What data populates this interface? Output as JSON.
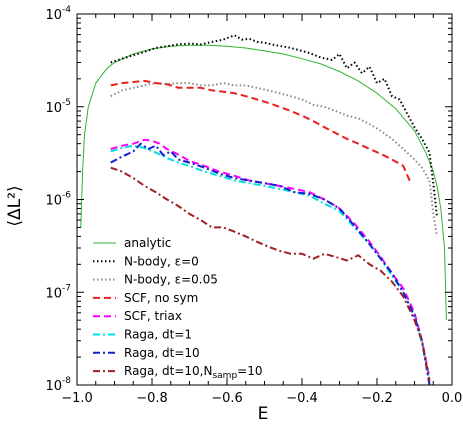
{
  "chart_data": {
    "type": "line",
    "title": "",
    "xlabel": "E",
    "ylabel": "⟨ΔL²⟩",
    "x_scale": "linear",
    "y_scale": "log",
    "xlim": [
      -1.0,
      0.0
    ],
    "ylim": [
      1e-08,
      0.0001
    ],
    "x_ticks": [
      -1.0,
      -0.8,
      -0.6,
      -0.4,
      -0.2,
      0.0
    ],
    "x_tick_labels": [
      "−1.0",
      "−0.8",
      "−0.6",
      "−0.4",
      "−0.2",
      "0.0"
    ],
    "y_ticks": [
      {
        "value": 1e-08,
        "base": "10",
        "exp": "-8"
      },
      {
        "value": 1e-07,
        "base": "10",
        "exp": "-7"
      },
      {
        "value": 1e-06,
        "base": "10",
        "exp": "-6"
      },
      {
        "value": 1e-05,
        "base": "10",
        "exp": "-5"
      },
      {
        "value": 0.0001,
        "base": "10",
        "exp": "-4"
      }
    ],
    "grid": false,
    "legend_position": "lower-left",
    "series": [
      {
        "name": "analytic",
        "color": "#2fb52f",
        "dash": "solid",
        "x": [
          -0.99,
          -0.985,
          -0.98,
          -0.97,
          -0.95,
          -0.92,
          -0.9,
          -0.85,
          -0.8,
          -0.75,
          -0.7,
          -0.65,
          -0.6,
          -0.55,
          -0.5,
          -0.45,
          -0.4,
          -0.35,
          -0.3,
          -0.25,
          -0.2,
          -0.15,
          -0.1,
          -0.07,
          -0.05,
          -0.04,
          -0.03,
          -0.02,
          -0.015
        ],
        "y": [
          5e-07,
          2e-06,
          5e-06,
          1e-05,
          1.8e-05,
          2.6e-05,
          3e-05,
          3.7e-05,
          4.2e-05,
          4.5e-05,
          4.6e-05,
          4.6e-05,
          4.5e-05,
          4.3e-05,
          4e-05,
          3.7e-05,
          3.3e-05,
          2.9e-05,
          2.4e-05,
          1.9e-05,
          1.4e-05,
          9.5e-06,
          5.5e-06,
          3.2e-06,
          2e-06,
          1.4e-06,
          8e-07,
          3e-07,
          5e-08
        ]
      },
      {
        "name": "N-body, ε=0",
        "color": "#000000",
        "dash": "dotted",
        "x": [
          -0.91,
          -0.88,
          -0.85,
          -0.82,
          -0.79,
          -0.76,
          -0.73,
          -0.7,
          -0.67,
          -0.64,
          -0.61,
          -0.58,
          -0.56,
          -0.54,
          -0.52,
          -0.5,
          -0.47,
          -0.44,
          -0.41,
          -0.38,
          -0.35,
          -0.32,
          -0.3,
          -0.28,
          -0.26,
          -0.24,
          -0.22,
          -0.2,
          -0.18,
          -0.16,
          -0.14,
          -0.12,
          -0.1,
          -0.08,
          -0.06,
          -0.05,
          -0.04
        ],
        "y": [
          3e-05,
          3.3e-05,
          3.6e-05,
          3.9e-05,
          4.3e-05,
          4.5e-05,
          4.7e-05,
          4.8e-05,
          4.7e-05,
          5e-05,
          5.3e-05,
          5.9e-05,
          5.3e-05,
          5.4e-05,
          5e-05,
          4.9e-05,
          4.6e-05,
          4.4e-05,
          4.1e-05,
          3.8e-05,
          3.4e-05,
          3.2e-05,
          3.7e-05,
          2.6e-05,
          3e-05,
          2.3e-05,
          2.7e-05,
          1.8e-05,
          2e-05,
          1.3e-05,
          1.2e-05,
          8.5e-06,
          6e-06,
          4.5e-06,
          3.2e-06,
          1.5e-06,
          6.5e-07
        ]
      },
      {
        "name": "N-body, ε=0.05",
        "color": "#888888",
        "dash": "dotted",
        "x": [
          -0.91,
          -0.88,
          -0.85,
          -0.82,
          -0.79,
          -0.76,
          -0.73,
          -0.7,
          -0.67,
          -0.64,
          -0.61,
          -0.58,
          -0.55,
          -0.52,
          -0.49,
          -0.46,
          -0.43,
          -0.4,
          -0.37,
          -0.34,
          -0.31,
          -0.28,
          -0.25,
          -0.22,
          -0.19,
          -0.16,
          -0.13,
          -0.1,
          -0.08,
          -0.06,
          -0.05,
          -0.04
        ],
        "y": [
          1.3e-05,
          1.5e-05,
          1.6e-05,
          1.7e-05,
          1.8e-05,
          1.75e-05,
          1.8e-05,
          1.8e-05,
          1.7e-05,
          1.7e-05,
          1.8e-05,
          1.7e-05,
          1.7e-05,
          1.6e-05,
          1.5e-05,
          1.4e-05,
          1.3e-05,
          1.2e-05,
          1.05e-05,
          1e-05,
          9e-06,
          8e-06,
          7.5e-06,
          6.5e-06,
          5.5e-06,
          4.5e-06,
          3.5e-06,
          2.7e-06,
          2.2e-06,
          1.6e-06,
          7e-07,
          4e-07
        ]
      },
      {
        "name": "SCF, no sym",
        "color": "#e82020",
        "dash": "dashed",
        "x": [
          -0.91,
          -0.88,
          -0.85,
          -0.82,
          -0.79,
          -0.76,
          -0.73,
          -0.7,
          -0.67,
          -0.64,
          -0.61,
          -0.58,
          -0.55,
          -0.52,
          -0.49,
          -0.46,
          -0.43,
          -0.4,
          -0.37,
          -0.34,
          -0.31,
          -0.28,
          -0.25,
          -0.22,
          -0.19,
          -0.16,
          -0.13,
          -0.11
        ],
        "y": [
          1.7e-05,
          1.8e-05,
          1.85e-05,
          1.9e-05,
          1.8e-05,
          1.75e-05,
          1.6e-05,
          1.6e-05,
          1.6e-05,
          1.5e-05,
          1.45e-05,
          1.4e-05,
          1.3e-05,
          1.2e-05,
          1.1e-05,
          1e-05,
          9e-06,
          8e-06,
          7e-06,
          6e-06,
          5.2e-06,
          4.5e-06,
          4e-06,
          3.5e-06,
          3.1e-06,
          2.7e-06,
          2.3e-06,
          1.5e-06
        ]
      },
      {
        "name": "SCF, triax",
        "color": "#ff00ff",
        "dash": "dashed",
        "x": [
          -0.91,
          -0.88,
          -0.85,
          -0.82,
          -0.8,
          -0.78,
          -0.76,
          -0.74,
          -0.72,
          -0.7,
          -0.66,
          -0.62,
          -0.58,
          -0.54,
          -0.5,
          -0.46,
          -0.42,
          -0.38,
          -0.34,
          -0.3,
          -0.26,
          -0.22,
          -0.19,
          -0.16,
          -0.13,
          -0.1,
          -0.08,
          -0.06
        ],
        "y": [
          3.5e-06,
          3.8e-06,
          4e-06,
          4.4e-06,
          4.3e-06,
          4e-06,
          3.5e-06,
          3.2e-06,
          2.9e-06,
          2.6e-06,
          2.3e-06,
          2e-06,
          1.8e-06,
          1.6e-06,
          1.5e-06,
          1.4e-06,
          1.3e-06,
          1.2e-06,
          1e-06,
          8e-07,
          5.5e-07,
          3.5e-07,
          2.4e-07,
          1.6e-07,
          1.1e-07,
          6e-08,
          3e-08,
          1.2e-08
        ]
      },
      {
        "name": "Raga, dt=1",
        "color": "#00e0e0",
        "dash": "dashdot",
        "x": [
          -0.91,
          -0.88,
          -0.85,
          -0.82,
          -0.79,
          -0.76,
          -0.73,
          -0.7,
          -0.66,
          -0.62,
          -0.58,
          -0.54,
          -0.5,
          -0.46,
          -0.42,
          -0.38,
          -0.34,
          -0.3,
          -0.26,
          -0.22,
          -0.19,
          -0.16,
          -0.13,
          -0.1,
          -0.08,
          -0.06
        ],
        "y": [
          3.3e-06,
          3.6e-06,
          3.8e-06,
          3.6e-06,
          3.2e-06,
          2.8e-06,
          2.5e-06,
          2.3e-06,
          2e-06,
          1.8e-06,
          1.6e-06,
          1.5e-06,
          1.4e-06,
          1.3e-06,
          1.2e-06,
          1.1e-06,
          9e-07,
          7.5e-07,
          5e-07,
          3.3e-07,
          2.3e-07,
          1.5e-07,
          1e-07,
          5.5e-08,
          2.8e-08,
          1.1e-08
        ]
      },
      {
        "name": "Raga, dt=10",
        "color": "#1020d0",
        "dash": "dashdot",
        "x": [
          -0.91,
          -0.88,
          -0.85,
          -0.83,
          -0.81,
          -0.79,
          -0.77,
          -0.75,
          -0.73,
          -0.7,
          -0.66,
          -0.62,
          -0.58,
          -0.54,
          -0.5,
          -0.46,
          -0.42,
          -0.38,
          -0.34,
          -0.3,
          -0.26,
          -0.22,
          -0.19,
          -0.16,
          -0.13,
          -0.1,
          -0.08,
          -0.06
        ],
        "y": [
          2.5e-06,
          2.9e-06,
          3.3e-06,
          4e-06,
          3.5e-06,
          3.8e-06,
          3e-06,
          3.3e-06,
          2.7e-06,
          2.5e-06,
          2.2e-06,
          1.9e-06,
          1.7e-06,
          1.6e-06,
          1.5e-06,
          1.4e-06,
          1.2e-06,
          1.15e-06,
          1e-06,
          8e-07,
          5.2e-07,
          3.3e-07,
          2.3e-07,
          1.6e-07,
          1e-07,
          5.5e-08,
          3e-08,
          1e-08
        ]
      },
      {
        "name": "Raga, dt=10,N_samp=10",
        "color": "#a02020",
        "dash": "dashdot",
        "x": [
          -0.91,
          -0.88,
          -0.85,
          -0.82,
          -0.79,
          -0.76,
          -0.73,
          -0.7,
          -0.67,
          -0.64,
          -0.61,
          -0.58,
          -0.55,
          -0.52,
          -0.49,
          -0.46,
          -0.43,
          -0.4,
          -0.37,
          -0.34,
          -0.31,
          -0.28,
          -0.25,
          -0.22,
          -0.19,
          -0.16,
          -0.13,
          -0.1,
          -0.08,
          -0.06
        ],
        "y": [
          2.2e-06,
          2e-06,
          1.7e-06,
          1.4e-06,
          1.2e-06,
          1e-06,
          8.5e-07,
          7e-07,
          6e-07,
          5e-07,
          5e-07,
          4.5e-07,
          4e-07,
          3.5e-07,
          3.1e-07,
          2.8e-07,
          2.6e-07,
          2.6e-07,
          2.3e-07,
          2.6e-07,
          2.4e-07,
          2.2e-07,
          2.5e-07,
          2e-07,
          1.7e-07,
          1.3e-07,
          9e-08,
          5e-08,
          3e-08,
          1.1e-08
        ]
      }
    ]
  },
  "legend": {
    "items": [
      {
        "label": "analytic",
        "sub": ""
      },
      {
        "label": "N-body, ε=0",
        "sub": ""
      },
      {
        "label": "N-body, ε=0.05",
        "sub": ""
      },
      {
        "label": "SCF, no sym",
        "sub": ""
      },
      {
        "label": "SCF, triax",
        "sub": ""
      },
      {
        "label": "Raga, dt=1",
        "sub": ""
      },
      {
        "label": "Raga, dt=10",
        "sub": ""
      },
      {
        "label": "Raga, dt=10,N",
        "sub": "samp",
        "tail": "=10"
      }
    ]
  }
}
